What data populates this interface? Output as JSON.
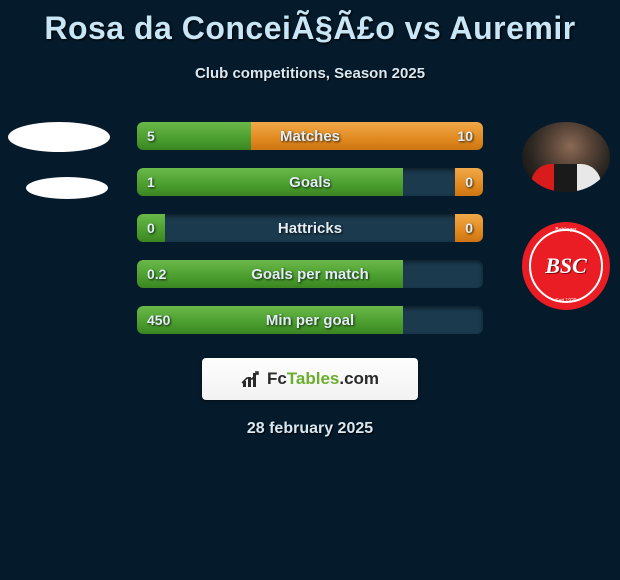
{
  "title": "Rosa da ConceiÃ§Ã£o vs Auremir",
  "subtitle": "Club competitions, Season 2025",
  "date": "28 february 2025",
  "colors": {
    "green_bar": "#4a9e2e",
    "orange_bar": "#e18a20",
    "bg": "#051a2a",
    "club_red": "#ea1c24"
  },
  "branding": {
    "text_prefix": "Fc",
    "text_main": "Tables",
    "text_suffix": ".com"
  },
  "club_logo": {
    "initials": "BSC",
    "ring_top": "Bahlinger",
    "ring_side": "Sport Club",
    "ring_bottom": "Seit 1929"
  },
  "stats": [
    {
      "label": "Matches",
      "left_val": "5",
      "right_val": "10",
      "left_pct": 33,
      "right_pct": 67
    },
    {
      "label": "Goals",
      "left_val": "1",
      "right_val": "0",
      "left_pct": 77,
      "right_pct": 8
    },
    {
      "label": "Hattricks",
      "left_val": "0",
      "right_val": "0",
      "left_pct": 8,
      "right_pct": 8
    },
    {
      "label": "Goals per match",
      "left_val": "0.2",
      "right_val": "",
      "left_pct": 77,
      "right_pct": 0
    },
    {
      "label": "Min per goal",
      "left_val": "450",
      "right_val": "",
      "left_pct": 77,
      "right_pct": 0
    }
  ]
}
